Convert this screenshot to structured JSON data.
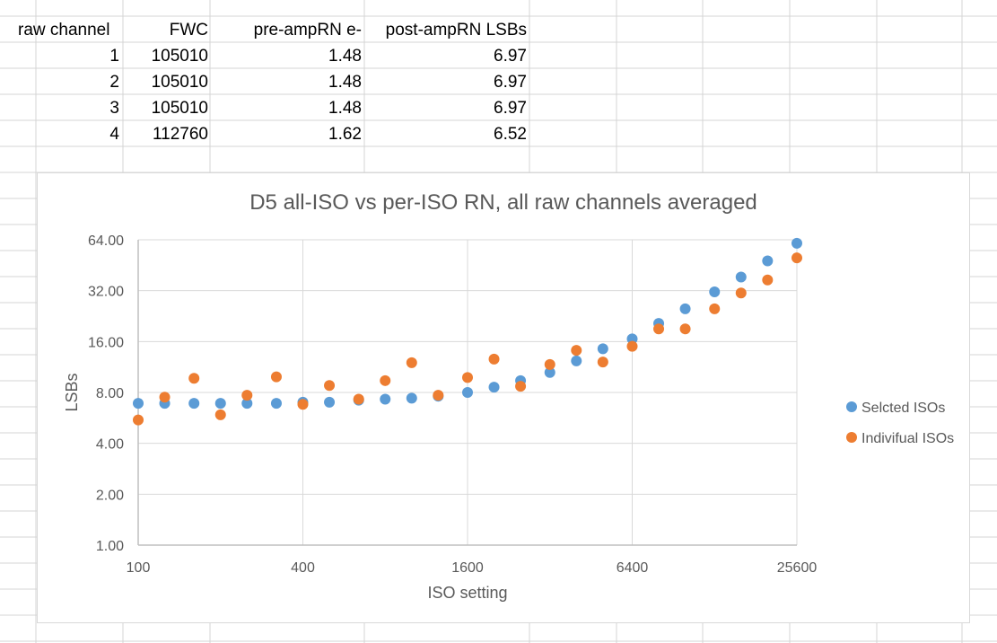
{
  "sheet": {
    "headers": [
      "raw channel",
      "FWC",
      "pre-ampRN e-",
      "post-ampRN LSBs"
    ],
    "rows": [
      [
        "1",
        "105010",
        "1.48",
        "6.97"
      ],
      [
        "2",
        "105010",
        "1.48",
        "6.97"
      ],
      [
        "3",
        "105010",
        "1.48",
        "6.97"
      ],
      [
        "4",
        "112760",
        "1.62",
        "6.52"
      ]
    ]
  },
  "chart_data": {
    "type": "scatter",
    "title": "D5 all-ISO vs per-ISO RN, all raw channels averaged",
    "xlabel": "ISO setting",
    "ylabel": "LSBs",
    "x_scale": "log2",
    "y_scale": "log2",
    "xlim": [
      100,
      25600
    ],
    "ylim": [
      1,
      64
    ],
    "x_ticks": [
      "100",
      "400",
      "1600",
      "6400",
      "25600"
    ],
    "y_ticks": [
      "1.00",
      "2.00",
      "4.00",
      "8.00",
      "16.00",
      "32.00",
      "64.00"
    ],
    "legend_position": "right",
    "grid": "major vertical and horizontal",
    "x": [
      100,
      125,
      160,
      200,
      250,
      320,
      400,
      500,
      640,
      800,
      1000,
      1250,
      1600,
      2000,
      2500,
      3200,
      4000,
      5000,
      6400,
      8000,
      10000,
      12800,
      16000,
      20000,
      25600
    ],
    "series": [
      {
        "name": "Selcted ISOs",
        "color": "#5b9bd5",
        "values": [
          6.9,
          6.9,
          6.9,
          6.9,
          6.9,
          6.9,
          7.0,
          7.0,
          7.2,
          7.3,
          7.4,
          7.6,
          8.0,
          8.6,
          9.4,
          10.5,
          12.3,
          14.5,
          16.6,
          20.5,
          25.0,
          31.5,
          38.5,
          48.0,
          61.0
        ]
      },
      {
        "name": "Indivifual ISOs",
        "color": "#ed7d31",
        "values": [
          5.5,
          7.5,
          9.7,
          5.9,
          7.7,
          9.9,
          6.8,
          8.8,
          7.3,
          9.4,
          12.0,
          7.7,
          9.8,
          12.6,
          8.7,
          11.7,
          14.2,
          12.1,
          15.0,
          19.0,
          19.0,
          25.0,
          31.0,
          37.0,
          50.0
        ]
      }
    ]
  }
}
